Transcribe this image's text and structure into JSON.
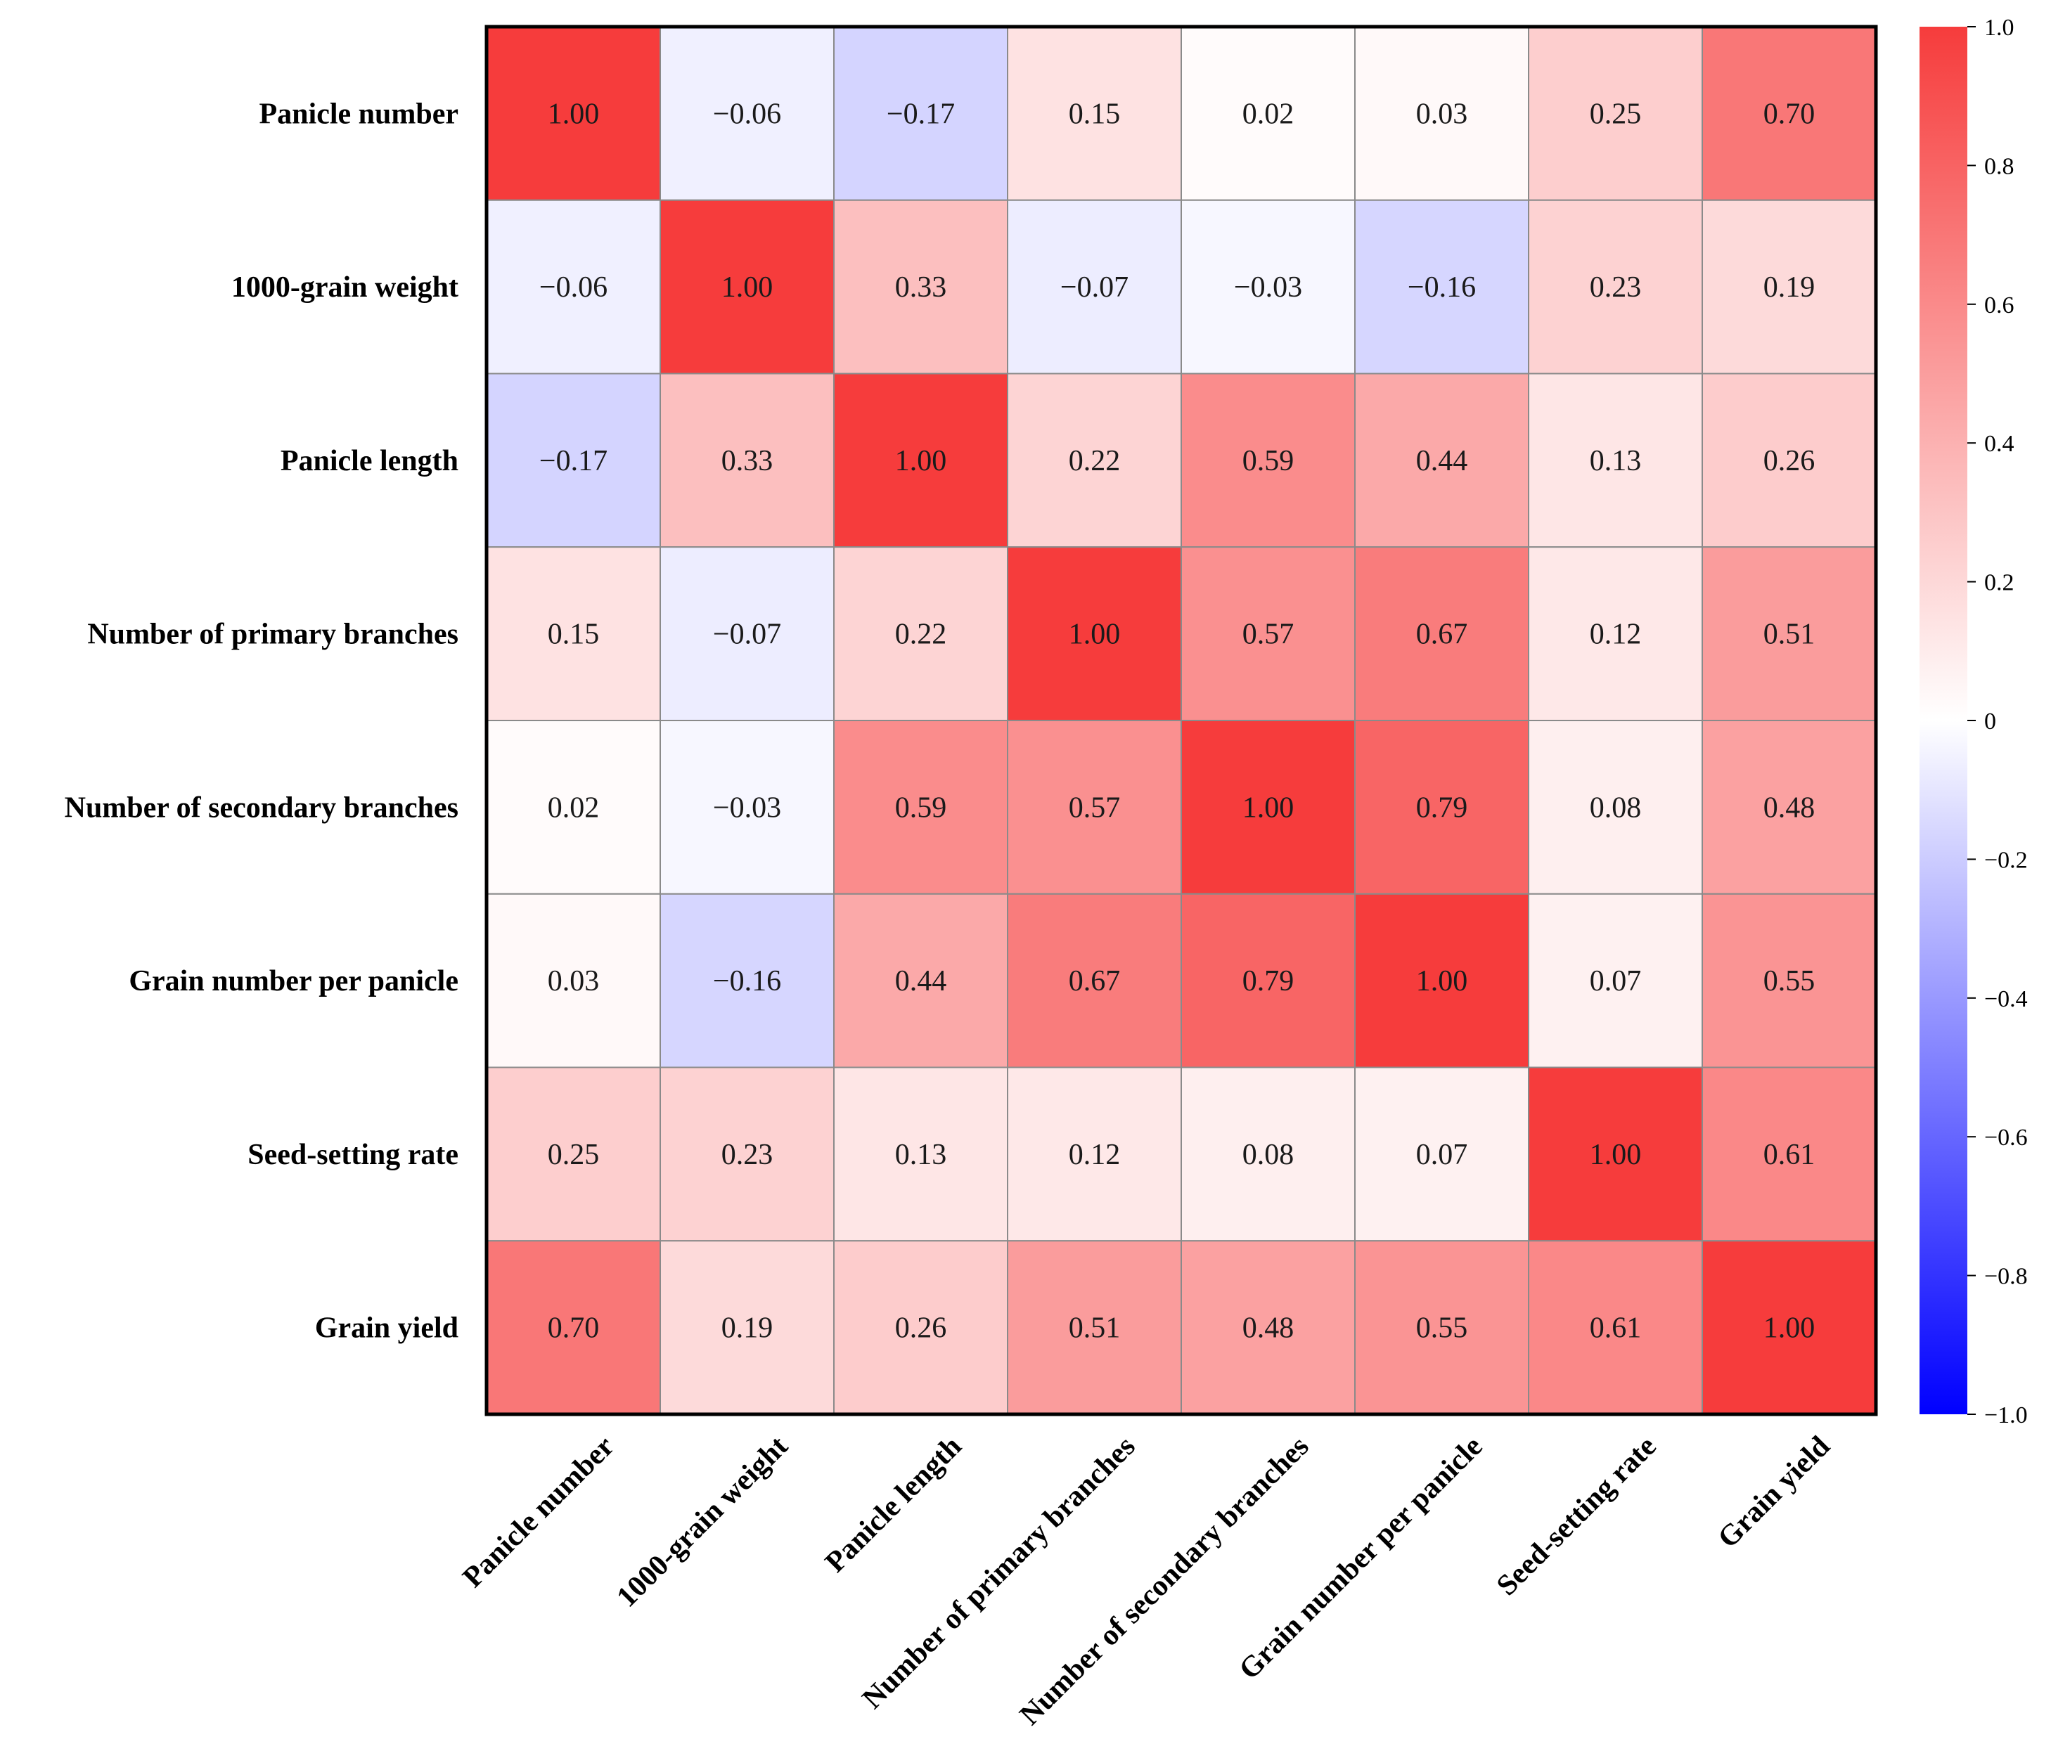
{
  "chart_data": {
    "type": "heatmap",
    "title": "",
    "row_labels": [
      "Panicle number",
      "1000-grain weight",
      "Panicle length",
      "Number of primary branches",
      "Number of secondary branches",
      "Grain number per panicle",
      "Seed-setting rate",
      "Grain yield"
    ],
    "col_labels": [
      "Panicle number",
      "1000-grain weight",
      "Panicle length",
      "Number of primary branches",
      "Number of secondary branches",
      "Grain number per panicle",
      "Seed-setting rate",
      "Grain yield"
    ],
    "values": [
      [
        1.0,
        -0.06,
        -0.17,
        0.15,
        0.02,
        0.03,
        0.25,
        0.7
      ],
      [
        -0.06,
        1.0,
        0.33,
        -0.07,
        -0.03,
        -0.16,
        0.23,
        0.19
      ],
      [
        -0.17,
        0.33,
        1.0,
        0.22,
        0.59,
        0.44,
        0.13,
        0.26
      ],
      [
        0.15,
        -0.07,
        0.22,
        1.0,
        0.57,
        0.67,
        0.12,
        0.51
      ],
      [
        0.02,
        -0.03,
        0.59,
        0.57,
        1.0,
        0.79,
        0.08,
        0.48
      ],
      [
        0.03,
        -0.16,
        0.44,
        0.67,
        0.79,
        1.0,
        0.07,
        0.55
      ],
      [
        0.25,
        0.23,
        0.13,
        0.12,
        0.08,
        0.07,
        1.0,
        0.61
      ],
      [
        0.7,
        0.19,
        0.26,
        0.51,
        0.48,
        0.55,
        0.61,
        1.0
      ]
    ],
    "value_format": "fixed-2-unicode-minus",
    "colorbar": {
      "range": [
        -1.0,
        1.0
      ],
      "ticks": [
        1.0,
        0.8,
        0.6,
        0.4,
        0.2,
        0,
        -0.2,
        -0.4,
        -0.6,
        -0.8,
        -1.0
      ],
      "tick_labels": [
        "1.0",
        "0.8",
        "0.6",
        "0.4",
        "0.2",
        "0",
        "−0.2",
        "−0.4",
        "−0.6",
        "−0.8",
        "−1.0"
      ],
      "color_low": "#0000ff",
      "color_mid": "#ffffff",
      "color_high": "#f63c3c"
    },
    "grid_color": "#8a8a8a",
    "frame_color": "#000000"
  }
}
